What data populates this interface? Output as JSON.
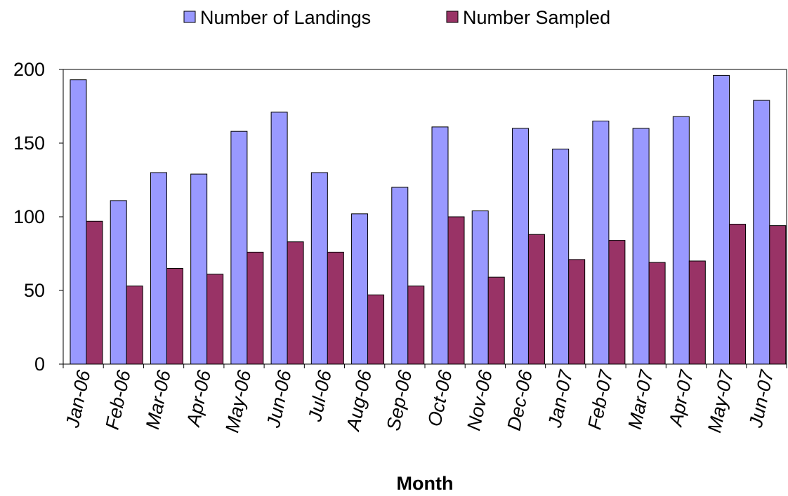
{
  "chart_data": {
    "type": "bar",
    "x_label": "Month",
    "categories": [
      "Jan-06",
      "Feb-06",
      "Mar-06",
      "Apr-06",
      "May-06",
      "Jun-06",
      "Jul-06",
      "Aug-06",
      "Sep-06",
      "Oct-06",
      "Nov-06",
      "Dec-06",
      "Jan-07",
      "Feb-07",
      "Mar-07",
      "Apr-07",
      "May-07",
      "Jun-07"
    ],
    "series": [
      {
        "name": "Number of Landings",
        "color": "#9999ff",
        "values": [
          193,
          111,
          130,
          129,
          158,
          171,
          130,
          102,
          120,
          161,
          104,
          160,
          146,
          165,
          160,
          168,
          196,
          179
        ]
      },
      {
        "name": "Number Sampled",
        "color": "#993366",
        "values": [
          97,
          53,
          65,
          61,
          76,
          83,
          76,
          47,
          53,
          100,
          59,
          88,
          71,
          84,
          69,
          70,
          95,
          94
        ]
      }
    ],
    "ylim": [
      0,
      200
    ],
    "yticks": [
      0,
      50,
      100,
      150,
      200
    ],
    "grid": false,
    "legend": "top"
  }
}
